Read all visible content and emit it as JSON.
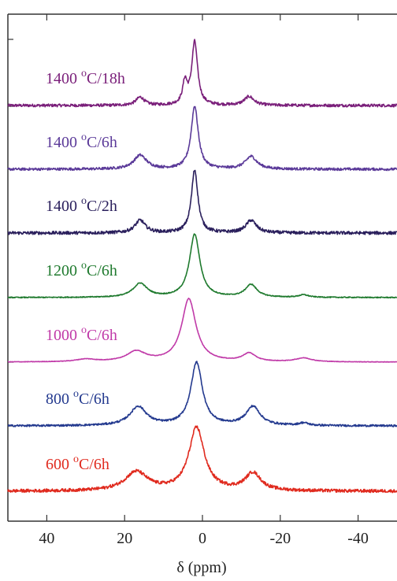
{
  "chart_data": {
    "type": "line",
    "xlabel": "δ (ppm)",
    "ylabel": "",
    "xlim": [
      50,
      -50
    ],
    "x_reversed": true,
    "grid": false,
    "legend": "inline-left",
    "xticks": [
      "40",
      "20",
      "0",
      "-20",
      "-40"
    ],
    "xtick_values": [
      40,
      20,
      0,
      -20,
      -40
    ],
    "series": [
      {
        "name": "1400 °C/18h",
        "label_main": "1400 ",
        "label_sup": "o",
        "label_rest": "C/18h",
        "color": "#7a1f7a",
        "noise": 0.045,
        "peaks": [
          {
            "x": 2.0,
            "h": 1.0,
            "w": 0.9
          },
          {
            "x": 4.5,
            "h": 0.35,
            "w": 0.7
          },
          {
            "x": 16.0,
            "h": 0.13,
            "w": 1.3
          },
          {
            "x": -12.0,
            "h": 0.14,
            "w": 1.5
          }
        ]
      },
      {
        "name": "1400 °C/6h",
        "label_main": "1400 ",
        "label_sup": "o",
        "label_rest": "C/6h",
        "color": "#5b3a99",
        "noise": 0.04,
        "peaks": [
          {
            "x": 2.0,
            "h": 1.0,
            "w": 1.1
          },
          {
            "x": 16.0,
            "h": 0.22,
            "w": 2.0
          },
          {
            "x": -12.5,
            "h": 0.2,
            "w": 1.8
          }
        ]
      },
      {
        "name": "1400 °C/2h",
        "label_main": "1400 ",
        "label_sup": "o",
        "label_rest": "C/2h",
        "color": "#2a1f5c",
        "noise": 0.05,
        "peaks": [
          {
            "x": 2.0,
            "h": 1.0,
            "w": 1.0
          },
          {
            "x": 16.0,
            "h": 0.2,
            "w": 1.6
          },
          {
            "x": -12.5,
            "h": 0.2,
            "w": 1.6
          }
        ]
      },
      {
        "name": "1200 °C/6h",
        "label_main": "1200 ",
        "label_sup": "o",
        "label_rest": "C/6h",
        "color": "#1f7a2e",
        "noise": 0.015,
        "peaks": [
          {
            "x": 2.0,
            "h": 1.0,
            "w": 1.6
          },
          {
            "x": 16.0,
            "h": 0.22,
            "w": 2.2
          },
          {
            "x": -12.5,
            "h": 0.2,
            "w": 1.8
          },
          {
            "x": -26.0,
            "h": 0.04,
            "w": 1.5
          }
        ]
      },
      {
        "name": "1000 °C/6h",
        "label_main": "1000 ",
        "label_sup": "o",
        "label_rest": "C/6h",
        "color": "#c03aa8",
        "noise": 0.008,
        "peaks": [
          {
            "x": 3.5,
            "h": 1.0,
            "w": 2.2
          },
          {
            "x": 17.0,
            "h": 0.16,
            "w": 3.0
          },
          {
            "x": -12.0,
            "h": 0.13,
            "w": 2.0
          },
          {
            "x": -26.0,
            "h": 0.06,
            "w": 2.5
          },
          {
            "x": 30.0,
            "h": 0.04,
            "w": 3.0
          }
        ]
      },
      {
        "name": "800 °C/6h",
        "label_main": "800 ",
        "label_sup": "o",
        "label_rest": "C/6h",
        "color": "#243a8f",
        "noise": 0.03,
        "peaks": [
          {
            "x": 1.5,
            "h": 1.0,
            "w": 1.8
          },
          {
            "x": 16.5,
            "h": 0.3,
            "w": 2.6
          },
          {
            "x": -13.0,
            "h": 0.3,
            "w": 2.2
          },
          {
            "x": -26.0,
            "h": 0.04,
            "w": 1.5
          }
        ]
      },
      {
        "name": "600 °C/6h",
        "label_main": "600 ",
        "label_sup": "o",
        "label_rest": "C/6h",
        "color": "#e02a1e",
        "noise": 0.05,
        "peaks": [
          {
            "x": 1.5,
            "h": 1.0,
            "w": 2.4
          },
          {
            "x": 17.0,
            "h": 0.3,
            "w": 3.5
          },
          {
            "x": -13.0,
            "h": 0.28,
            "w": 2.4
          }
        ]
      }
    ]
  }
}
